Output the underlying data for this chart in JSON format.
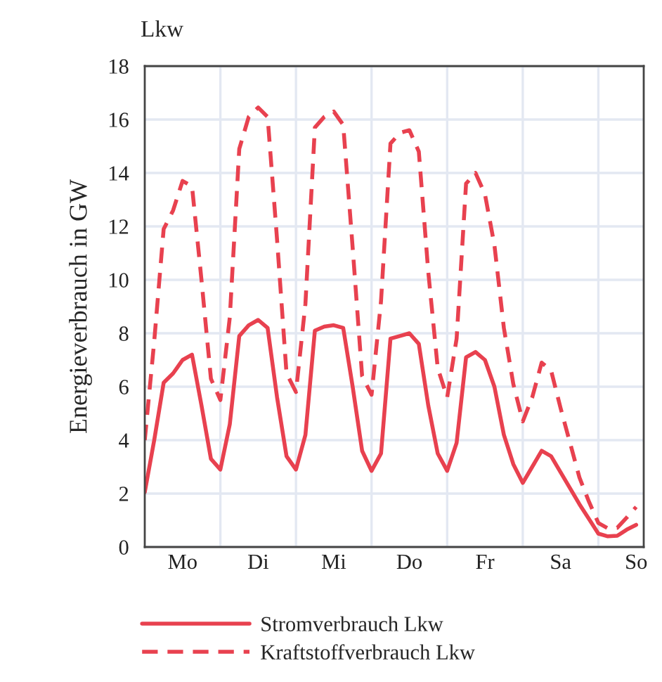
{
  "chart_data": {
    "type": "line",
    "title": "Lkw",
    "ylabel": "Energieverbrauch in GW",
    "ylim": [
      0,
      18
    ],
    "yticks": [
      0,
      2,
      4,
      6,
      8,
      10,
      12,
      14,
      16,
      18
    ],
    "categories": [
      null,
      null,
      null,
      null,
      "Mo",
      null,
      null,
      null,
      null,
      null,
      null,
      null,
      "Di",
      null,
      null,
      null,
      null,
      null,
      null,
      null,
      "Mi",
      null,
      null,
      null,
      null,
      null,
      null,
      null,
      "Do",
      null,
      null,
      null,
      null,
      null,
      null,
      null,
      "Fr",
      null,
      null,
      null,
      null,
      null,
      null,
      null,
      "Sa",
      null,
      null,
      null,
      null,
      null,
      null,
      null,
      "So"
    ],
    "grid": true,
    "legend": "bottom",
    "series": [
      {
        "name": "Stromverbrauch Lkw",
        "color": "#e8414f",
        "line_style": "solid",
        "values": [
          2.05,
          4.0,
          6.15,
          6.5,
          7.0,
          7.2,
          5.3,
          3.3,
          2.9,
          4.6,
          7.9,
          8.3,
          8.5,
          8.2,
          5.6,
          3.4,
          2.9,
          4.2,
          8.1,
          8.25,
          8.3,
          8.2,
          6.0,
          3.6,
          2.85,
          3.5,
          7.8,
          7.9,
          8.0,
          7.6,
          5.3,
          3.5,
          2.85,
          3.9,
          7.1,
          7.3,
          7.0,
          6.0,
          4.2,
          3.1,
          2.4,
          3.0,
          3.6,
          3.4,
          2.8,
          2.2,
          1.6,
          1.05,
          0.5,
          0.4,
          0.42,
          0.65,
          0.83
        ]
      },
      {
        "name": "Kraftstoffverbrauch Lkw",
        "color": "#e8414f",
        "line_style": "dashed",
        "values": [
          4.0,
          7.7,
          11.9,
          12.6,
          13.7,
          13.5,
          10.0,
          6.3,
          5.5,
          8.6,
          14.9,
          16.1,
          16.45,
          16.1,
          11.5,
          6.5,
          5.8,
          9.1,
          15.7,
          16.1,
          16.3,
          15.8,
          11.2,
          6.4,
          5.7,
          9.2,
          15.1,
          15.5,
          15.6,
          14.8,
          10.3,
          6.7,
          5.6,
          7.8,
          13.6,
          14.0,
          13.2,
          11.3,
          8.2,
          6.1,
          4.7,
          5.6,
          6.9,
          6.6,
          5.2,
          3.9,
          2.6,
          1.7,
          0.9,
          0.7,
          0.72,
          1.1,
          1.5
        ]
      }
    ]
  }
}
